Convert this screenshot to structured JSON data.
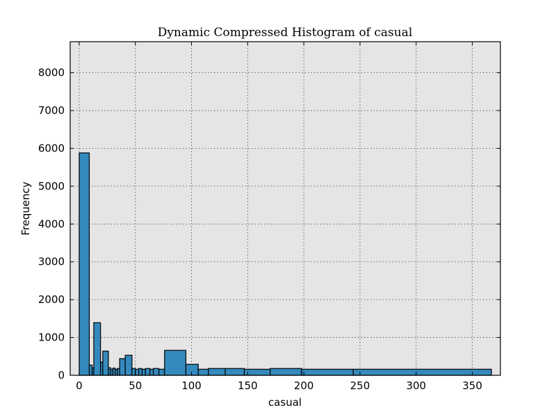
{
  "chart_data": {
    "type": "bar",
    "title": "Dynamic Compressed Histogram of casual",
    "xlabel": "casual",
    "ylabel": "Frequency",
    "xlim": [
      -8,
      375
    ],
    "ylim": [
      0,
      8820
    ],
    "grid": true,
    "xticks": [
      0,
      50,
      100,
      150,
      200,
      250,
      300,
      350
    ],
    "yticks": [
      0,
      1000,
      2000,
      3000,
      4000,
      5000,
      6000,
      7000,
      8000
    ],
    "bins": [
      {
        "x0": 0,
        "x1": 9,
        "value": 5880
      },
      {
        "x0": 9,
        "x1": 11.5,
        "value": 270
      },
      {
        "x0": 11.5,
        "x1": 13,
        "value": 200
      },
      {
        "x0": 13,
        "x1": 19,
        "value": 1390
      },
      {
        "x0": 19,
        "x1": 21,
        "value": 350
      },
      {
        "x0": 21,
        "x1": 26,
        "value": 640
      },
      {
        "x0": 26,
        "x1": 28,
        "value": 200
      },
      {
        "x0": 28,
        "x1": 30,
        "value": 160
      },
      {
        "x0": 30,
        "x1": 32,
        "value": 190
      },
      {
        "x0": 32,
        "x1": 34,
        "value": 160
      },
      {
        "x0": 34,
        "x1": 36,
        "value": 180
      },
      {
        "x0": 36,
        "x1": 41,
        "value": 440
      },
      {
        "x0": 41,
        "x1": 47,
        "value": 530
      },
      {
        "x0": 47,
        "x1": 50,
        "value": 180
      },
      {
        "x0": 50,
        "x1": 53,
        "value": 160
      },
      {
        "x0": 53,
        "x1": 56,
        "value": 180
      },
      {
        "x0": 56,
        "x1": 59,
        "value": 160
      },
      {
        "x0": 59,
        "x1": 63,
        "value": 180
      },
      {
        "x0": 63,
        "x1": 66,
        "value": 160
      },
      {
        "x0": 66,
        "x1": 71,
        "value": 180
      },
      {
        "x0": 71,
        "x1": 76,
        "value": 160
      },
      {
        "x0": 76,
        "x1": 95,
        "value": 660
      },
      {
        "x0": 95,
        "x1": 106,
        "value": 290
      },
      {
        "x0": 106,
        "x1": 115,
        "value": 160
      },
      {
        "x0": 115,
        "x1": 130,
        "value": 180
      },
      {
        "x0": 130,
        "x1": 147,
        "value": 180
      },
      {
        "x0": 147,
        "x1": 170,
        "value": 160
      },
      {
        "x0": 170,
        "x1": 198,
        "value": 180
      },
      {
        "x0": 198,
        "x1": 244,
        "value": 160
      },
      {
        "x0": 244,
        "x1": 367,
        "value": 160
      }
    ]
  }
}
